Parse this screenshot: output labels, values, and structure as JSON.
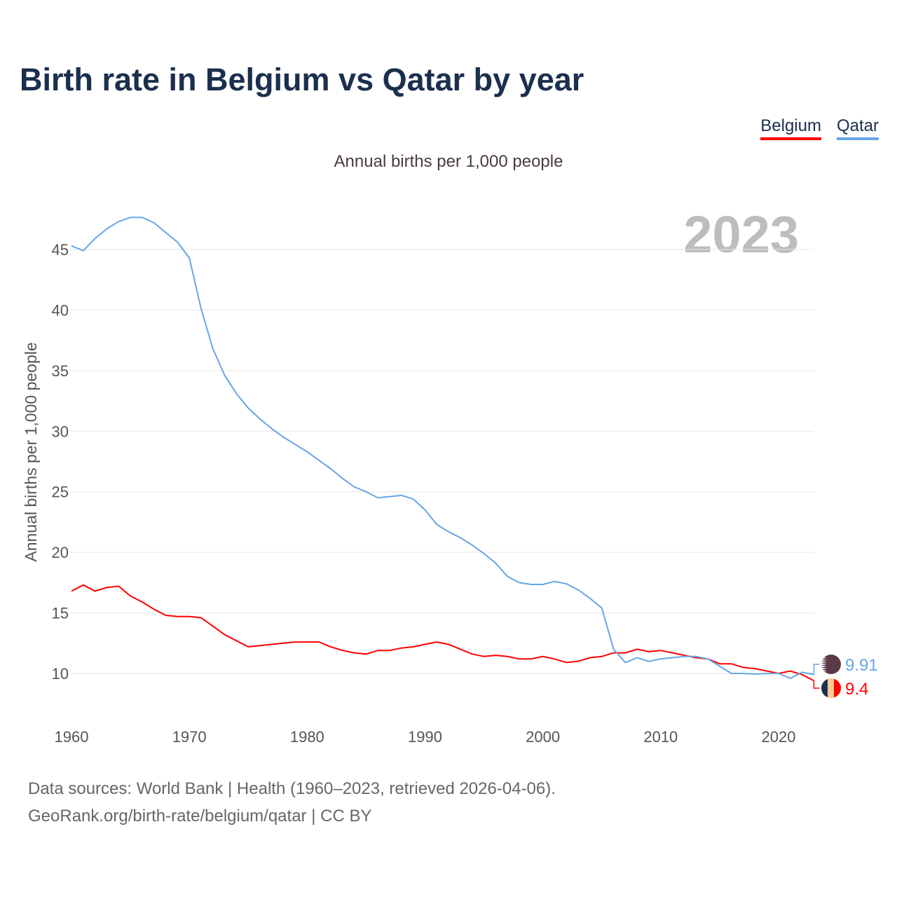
{
  "title": "Birth rate in Belgium vs Qatar by year",
  "legend": [
    {
      "label": "Belgium",
      "color": "#ff0000"
    },
    {
      "label": "Qatar",
      "color": "#66a6e8"
    }
  ],
  "subtitle": "Annual births per 1,000 people",
  "source_line1": "Data sources: World Bank | Health (1960–2023, retrieved 2026-04-06).",
  "source_line2": "GeoRank.org/birth-rate/belgium/qatar | CC BY",
  "chart_data": {
    "type": "line",
    "title": "Birth rate in Belgium vs Qatar by year",
    "ylabel": "Annual births per 1,000 people",
    "xlabel": "",
    "year_watermark": "2023",
    "xlim": [
      1960,
      2023
    ],
    "ylim": [
      8,
      48
    ],
    "xticks": [
      1960,
      1970,
      1980,
      1990,
      2000,
      2010,
      2020
    ],
    "yticks": [
      10,
      15,
      20,
      25,
      30,
      35,
      40,
      45
    ],
    "x_start": 1960,
    "series": [
      {
        "name": "Belgium",
        "color": "#ff0000",
        "end_label": "9.4",
        "values": [
          16.8,
          17.3,
          16.8,
          17.1,
          17.2,
          16.4,
          15.9,
          15.3,
          14.8,
          14.7,
          14.7,
          14.6,
          13.9,
          13.2,
          12.7,
          12.2,
          12.3,
          12.4,
          12.5,
          12.6,
          12.6,
          12.6,
          12.2,
          11.9,
          11.7,
          11.6,
          11.9,
          11.9,
          12.1,
          12.2,
          12.4,
          12.6,
          12.4,
          12.0,
          11.6,
          11.4,
          11.5,
          11.4,
          11.2,
          11.2,
          11.4,
          11.2,
          10.9,
          11.0,
          11.3,
          11.4,
          11.7,
          11.7,
          12.0,
          11.8,
          11.9,
          11.7,
          11.5,
          11.3,
          11.2,
          10.8,
          10.8,
          10.5,
          10.4,
          10.2,
          10.0,
          10.2,
          9.9,
          9.4
        ]
      },
      {
        "name": "Qatar",
        "color": "#66a6e8",
        "end_label": "9.91",
        "values": [
          45.3,
          44.9,
          45.9,
          46.7,
          47.3,
          47.65,
          47.65,
          47.2,
          46.4,
          45.6,
          44.3,
          40.1,
          36.8,
          34.6,
          33.1,
          31.9,
          31.0,
          30.2,
          29.5,
          28.9,
          28.3,
          27.6,
          26.9,
          26.1,
          25.4,
          25.0,
          24.5,
          24.6,
          24.7,
          24.4,
          23.5,
          22.3,
          21.7,
          21.2,
          20.6,
          19.9,
          19.1,
          18.0,
          17.5,
          17.35,
          17.35,
          17.6,
          17.4,
          16.9,
          16.2,
          15.4,
          12.0,
          10.9,
          11.3,
          11.0,
          11.2,
          11.3,
          11.4,
          11.4,
          11.2,
          10.6,
          10.0,
          10.0,
          9.95,
          10.0,
          10.0,
          9.6,
          10.1,
          9.91
        ]
      }
    ]
  }
}
